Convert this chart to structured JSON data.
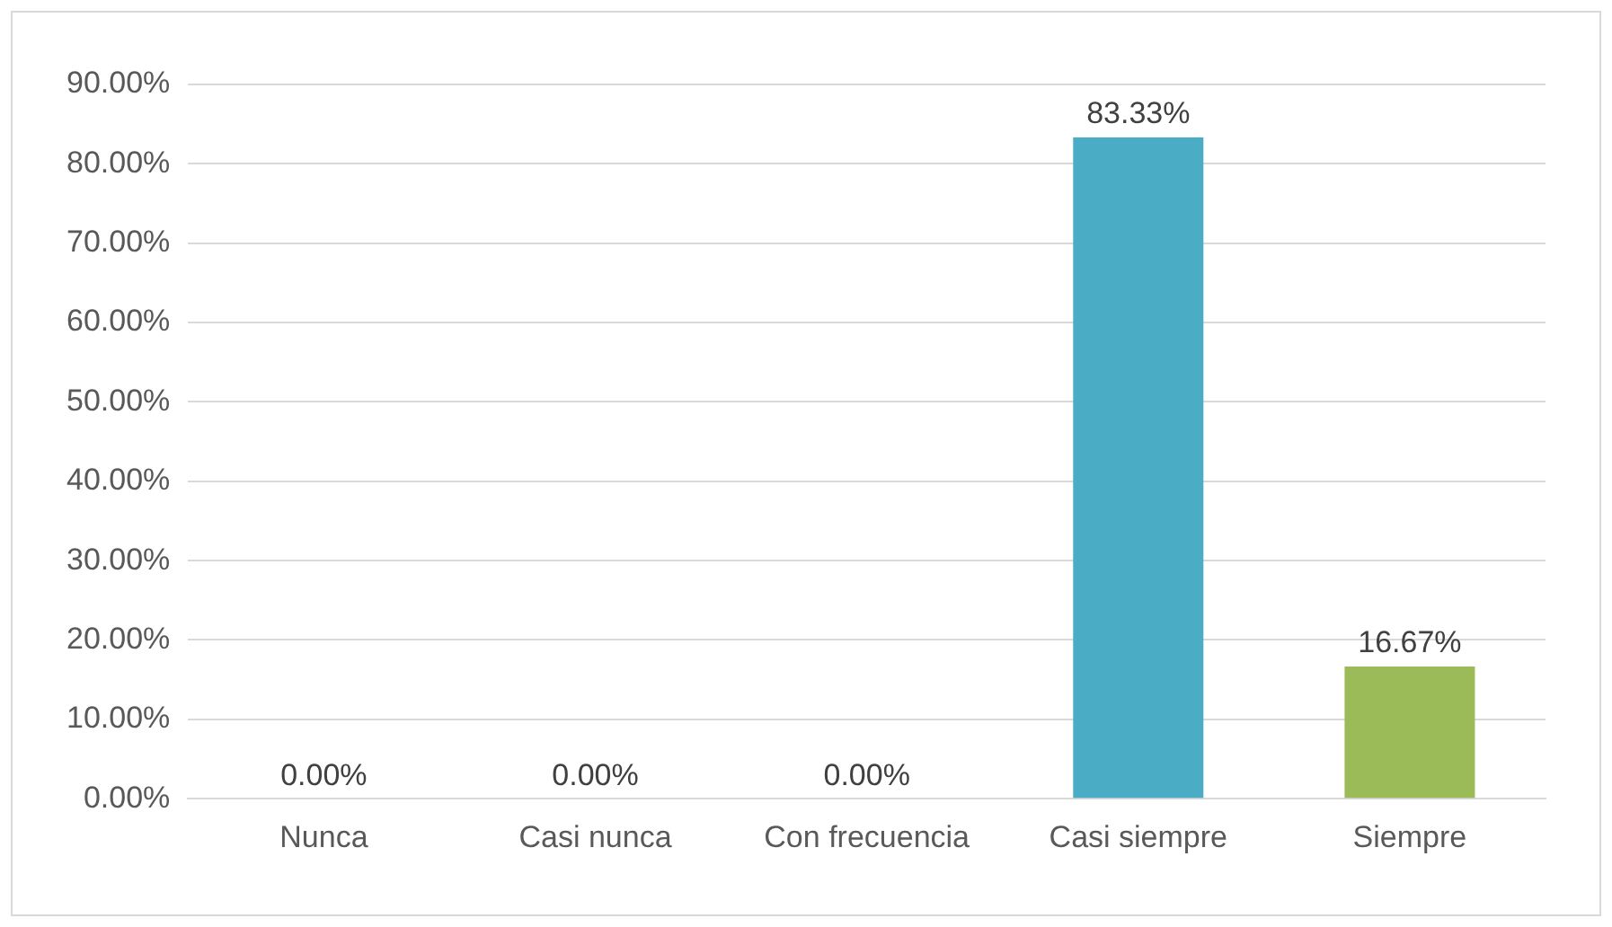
{
  "chart_data": {
    "type": "bar",
    "categories": [
      "Nunca",
      "Casi nunca",
      "Con frecuencia",
      "Casi siempre",
      "Siempre"
    ],
    "values": [
      0,
      0,
      0,
      83.33,
      16.67
    ],
    "colors": [
      "#c0732f",
      "#943634",
      "#366092",
      "#4bacc6",
      "#9bbb59"
    ],
    "value_labels": [
      "0.00%",
      "0.00%",
      "0.00%",
      "83.33%",
      "16.67%"
    ],
    "ylim": [
      0,
      90
    ],
    "yticks": [
      {
        "value": 0,
        "label": "0.00%"
      },
      {
        "value": 10,
        "label": "10.00%"
      },
      {
        "value": 20,
        "label": "20.00%"
      },
      {
        "value": 30,
        "label": "30.00%"
      },
      {
        "value": 40,
        "label": "40.00%"
      },
      {
        "value": 50,
        "label": "50.00%"
      },
      {
        "value": 60,
        "label": "60.00%"
      },
      {
        "value": 70,
        "label": "70.00%"
      },
      {
        "value": 80,
        "label": "80.00%"
      },
      {
        "value": 90,
        "label": "90.00%"
      }
    ],
    "grid": "y",
    "legend": false
  }
}
